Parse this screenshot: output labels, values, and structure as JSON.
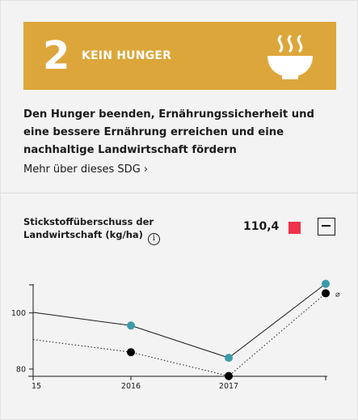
{
  "sdg": {
    "number": "2",
    "title": "KEIN HUNGER",
    "icon": "food-bowl-icon",
    "color": "#dda63a",
    "description": "Den Hunger beenden, Ernährungssicherheit und eine bessere Ernährung erreichen und eine nachhaltige Landwirtschaft fördern",
    "more_link": "Mehr über dieses SDG ›"
  },
  "indicator": {
    "title": "Stickstoffüberschuss der Landwirtschaft (kg/ha)",
    "info_icon": "info-icon",
    "value": "110,4",
    "status_color": "#f0324a",
    "collapse_icon": "minus-icon"
  },
  "chart_data": {
    "type": "line",
    "x_labels": [
      "15",
      "2016",
      "2017"
    ],
    "y_ticks": [
      "100",
      "80"
    ],
    "ylim": [
      77,
      110
    ],
    "series": [
      {
        "color": "#3a9baa",
        "style": "solid",
        "values": [
          100.2,
          95.5,
          84.0,
          110.4
        ]
      },
      {
        "color": "#000000",
        "style": "dotted",
        "values": [
          90.5,
          86.0,
          77.5,
          107.0
        ]
      }
    ],
    "end_annotation": "⌀"
  }
}
